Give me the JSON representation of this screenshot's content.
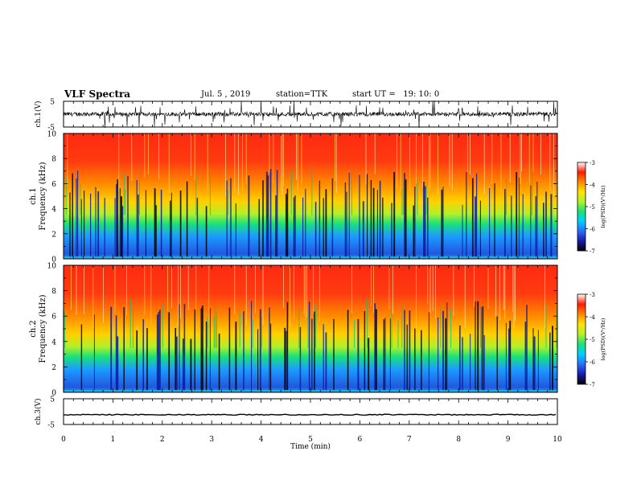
{
  "header": {
    "title": "VLF Spectra",
    "date": "Jul. 5 , 2019",
    "station": "station=TTK",
    "start_ut": "start UT =   19: 10: 0"
  },
  "chart_data": [
    {
      "type": "line",
      "panel": "ch1-waveform",
      "ylabel": "ch.1(V)",
      "yticks": [
        "5",
        "-5"
      ],
      "ylim": [
        -5,
        5
      ],
      "xlim": [
        0,
        10
      ]
    },
    {
      "type": "heatmap",
      "panel": "ch1-spectrogram",
      "ylabel": "ch.1\nFrequency (kHz)",
      "ylabel_lines": [
        "ch.1",
        "Frequency (kHz)"
      ],
      "yticks": [
        "0",
        "2",
        "4",
        "6",
        "8",
        "10"
      ],
      "ylim": [
        0,
        10
      ],
      "xlim": [
        0,
        10
      ],
      "colorbar": {
        "label": "log(PSD)(V²/Hz)",
        "ticks": [
          "-3",
          "-4",
          "-5",
          "-6",
          "-7"
        ],
        "range": [
          -7,
          -3
        ]
      }
    },
    {
      "type": "heatmap",
      "panel": "ch2-spectrogram",
      "ylabel": "ch.2\nFrequency (kHz)",
      "ylabel_lines": [
        "ch.2",
        "Frequency (kHz)"
      ],
      "yticks": [
        "0",
        "2",
        "4",
        "6",
        "8",
        "10"
      ],
      "ylim": [
        0,
        10
      ],
      "xlim": [
        0,
        10
      ],
      "colorbar": {
        "label": "log(PSD)(V²/Hz)",
        "ticks": [
          "-3",
          "-4",
          "-5",
          "-6",
          "-7"
        ],
        "range": [
          -7,
          -3
        ]
      }
    },
    {
      "type": "line",
      "panel": "ch3-waveform",
      "ylabel": "ch.3(V)",
      "yticks": [
        "5",
        "-5"
      ],
      "ylim": [
        -5,
        5
      ],
      "xlim": [
        0,
        10
      ]
    }
  ],
  "xaxis": {
    "label": "Time (min)",
    "ticks": [
      "0",
      "1",
      "2",
      "3",
      "4",
      "5",
      "6",
      "7",
      "8",
      "9",
      "10"
    ]
  },
  "colors": {
    "colormap": [
      "#000000",
      "#1a1aa8",
      "#2a6cff",
      "#00d0ff",
      "#19e27a",
      "#b4f029",
      "#ffe400",
      "#ff8a00",
      "#ff1a00",
      "#ffffff"
    ]
  }
}
